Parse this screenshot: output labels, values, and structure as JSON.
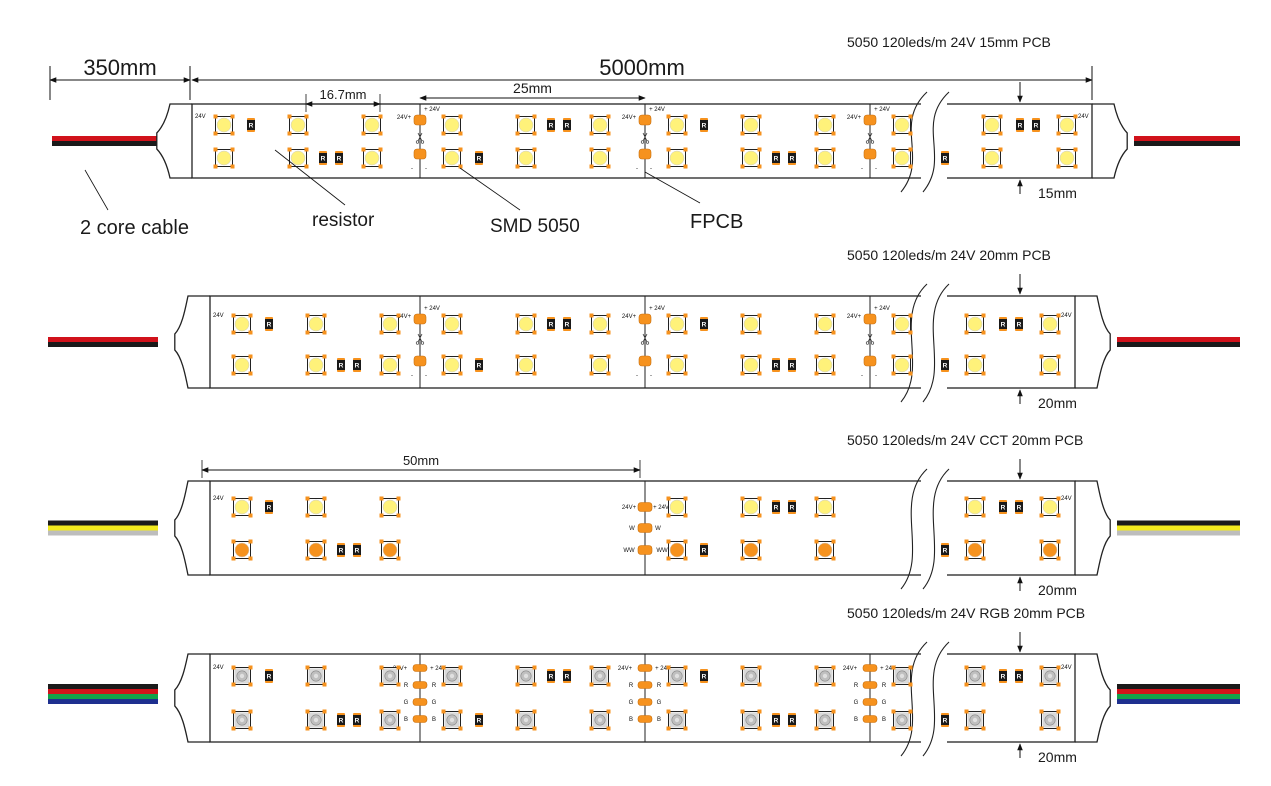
{
  "strips": [
    {
      "title": "5050 120leds/m  24V 15mm PCB",
      "width_label": "15mm",
      "variant": "single",
      "cable_colors": [
        "#d1121b",
        "#1a1a1a"
      ],
      "dims": {
        "lead": "350mm",
        "length": "5000mm",
        "led_pitch": "16.7mm",
        "cut_pitch": "25mm"
      },
      "callouts": {
        "cable": "2 core cable",
        "resistor": "resistor",
        "led": "SMD 5050",
        "pcb": "FPCB"
      }
    },
    {
      "title": "5050 120leds/m  24V 20mm PCB",
      "width_label": "20mm",
      "variant": "single",
      "cable_colors": [
        "#d1121b",
        "#1a1a1a"
      ]
    },
    {
      "title": "5050 120leds/m  24V CCT 20mm PCB",
      "width_label": "20mm",
      "variant": "cct",
      "cable_colors": [
        "#1a1a1a",
        "#f2ea1e",
        "#bdbdbd"
      ],
      "dims": {
        "cut_pitch": "50mm"
      }
    },
    {
      "title": "5050 120leds/m  24V RGB 20mm PCB",
      "width_label": "20mm",
      "variant": "rgb",
      "cable_colors": [
        "#1a1a1a",
        "#d1121b",
        "#12a04a",
        "#1e2f8f"
      ]
    }
  ],
  "pad_labels": {
    "v24": "24V",
    "v24p": "24V+",
    "p24": "+ 24V",
    "minus": "-",
    "w": "W",
    "ww": "WW",
    "r": "R",
    "g": "G",
    "b": "B",
    "resistor_mark": "R"
  },
  "colors": {
    "warm_led": "#f6921e",
    "cool_led": "#fff27a",
    "solder_pad": "#f6921e",
    "rgb_led": "#d9d9d9"
  }
}
